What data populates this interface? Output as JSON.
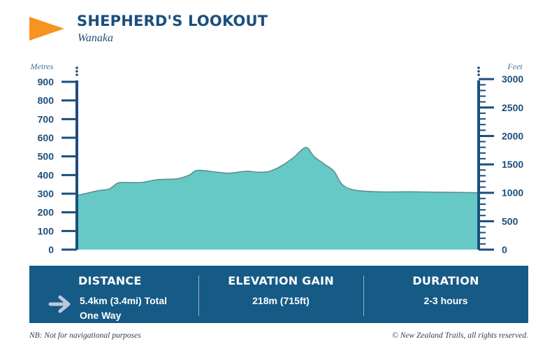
{
  "header": {
    "title": "SHEPHERD'S LOOKOUT",
    "subtitle": "Wanaka",
    "accent_color": "#f7931e",
    "flag_icon": "orange-pennant-flag"
  },
  "chart_data": {
    "type": "area",
    "ylabel": "Metres",
    "y2label": "Feet",
    "ylim": [
      0,
      900
    ],
    "yticks": [
      0,
      100,
      200,
      300,
      400,
      500,
      600,
      700,
      800,
      900
    ],
    "y2lim": [
      0,
      3000
    ],
    "y2ticks": [
      0,
      500,
      1000,
      1500,
      2000,
      2500,
      3000
    ],
    "x_fraction": [
      0.0,
      0.05,
      0.08,
      0.1,
      0.115,
      0.16,
      0.2,
      0.25,
      0.28,
      0.3,
      0.35,
      0.38,
      0.41,
      0.43,
      0.45,
      0.48,
      0.51,
      0.54,
      0.57,
      0.59,
      0.615,
      0.64,
      0.66,
      0.69,
      0.75,
      0.83,
      0.9,
      1.0
    ],
    "elevation_m": [
      290,
      315,
      325,
      355,
      360,
      360,
      375,
      380,
      400,
      425,
      415,
      410,
      418,
      420,
      415,
      420,
      450,
      495,
      548,
      500,
      460,
      420,
      350,
      320,
      310,
      310,
      308,
      305
    ],
    "fill_color": "#66c9c6",
    "line_color": "#5b8f8f",
    "axis_color": "#1b4f7d"
  },
  "stats": {
    "distance": {
      "heading": "DISTANCE",
      "line1": "5.4km (3.4mi) Total",
      "line2": "One Way",
      "icon": "arrow-right-icon"
    },
    "elevation": {
      "heading": "ELEVATION GAIN",
      "value": "218m (715ft)"
    },
    "duration": {
      "heading": "DURATION",
      "value": "2-3 hours"
    },
    "panel_color": "#165a86"
  },
  "footer": {
    "note": "NB: Not for navigational purposes",
    "copyright": "© New Zealand Trails, all rights reserved."
  }
}
